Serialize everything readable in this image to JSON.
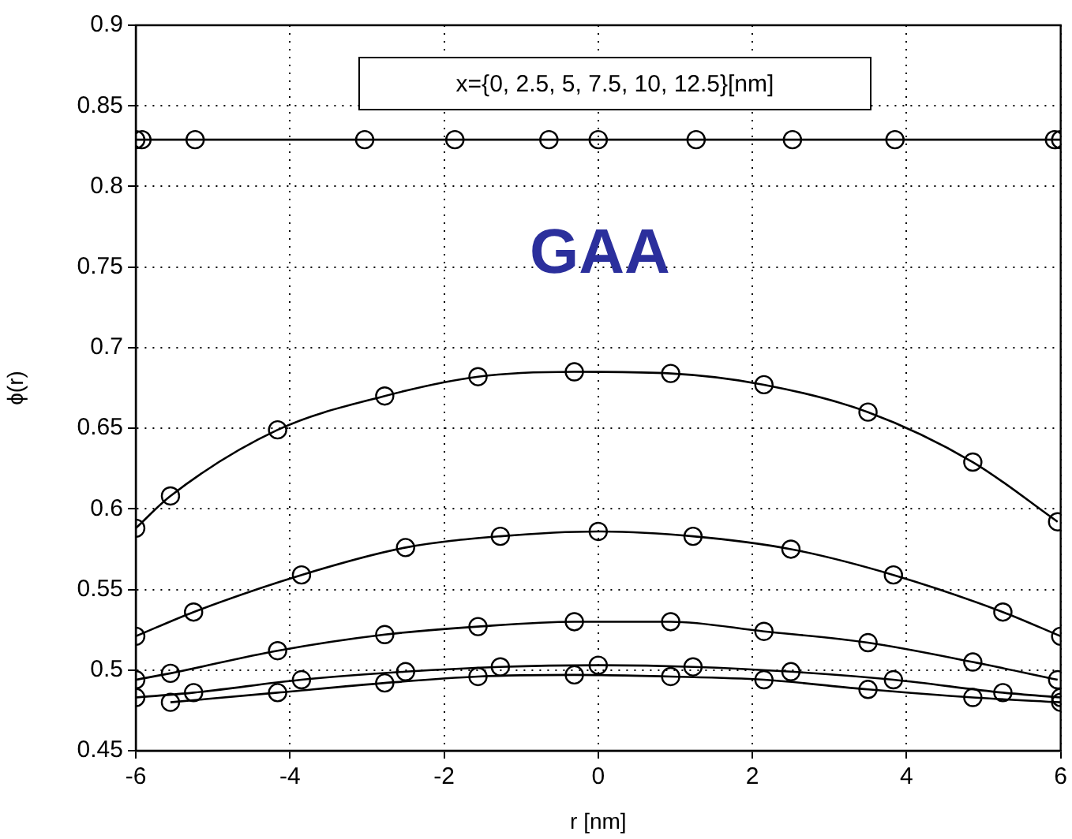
{
  "chart_data": {
    "type": "line",
    "xlabel": "r [nm]",
    "ylabel": "ϕ(r)",
    "annotations": [
      "x={0, 2.5, 5, 7.5, 10, 12.5}[nm]",
      "GAA"
    ],
    "xlim": [
      -6,
      6
    ],
    "xticks": [
      -6,
      -4,
      -2,
      0,
      2,
      4,
      6
    ],
    "ylim": [
      0.45,
      0.9
    ],
    "yticks": [
      0.45,
      0.5,
      0.55,
      0.6,
      0.65,
      0.7,
      0.75,
      0.8,
      0.85,
      0.9
    ],
    "grid": true,
    "legend": false,
    "marker": "circle",
    "line_style": "solid",
    "series": [
      {
        "color": "#000000",
        "x": [
          -6,
          -5.92,
          -5.23,
          -3.03,
          -1.86,
          -0.64,
          0,
          1.27,
          2.52,
          3.85,
          5.92,
          6
        ],
        "values": [
          0.829,
          0.829,
          0.829,
          0.829,
          0.829,
          0.829,
          0.829,
          0.829,
          0.829,
          0.829,
          0.829,
          0.829
        ]
      },
      {
        "color": "#000000",
        "x": [
          -6,
          -5.55,
          -4.16,
          -2.77,
          -1.56,
          -0.31,
          0.94,
          2.15,
          3.5,
          4.86,
          5.96
        ],
        "values": [
          0.588,
          0.608,
          0.649,
          0.67,
          0.682,
          0.685,
          0.684,
          0.677,
          0.66,
          0.629,
          0.592
        ]
      },
      {
        "color": "#000000",
        "x": [
          -6,
          -5.25,
          -3.85,
          -2.5,
          -1.27,
          0,
          1.23,
          2.5,
          3.83,
          5.25,
          6
        ],
        "values": [
          0.521,
          0.536,
          0.559,
          0.576,
          0.583,
          0.586,
          0.583,
          0.575,
          0.559,
          0.536,
          0.521
        ]
      },
      {
        "color": "#000000",
        "x": [
          -6,
          -5.55,
          -4.16,
          -2.77,
          -1.56,
          -0.31,
          0.94,
          2.15,
          3.5,
          4.86,
          5.96
        ],
        "values": [
          0.494,
          0.498,
          0.512,
          0.522,
          0.527,
          0.53,
          0.53,
          0.524,
          0.517,
          0.505,
          0.494
        ]
      },
      {
        "color": "#000000",
        "x": [
          -6,
          -5.25,
          -3.85,
          -2.5,
          -1.27,
          0,
          1.23,
          2.5,
          3.83,
          5.25,
          6
        ],
        "values": [
          0.483,
          0.486,
          0.494,
          0.499,
          0.502,
          0.503,
          0.502,
          0.499,
          0.494,
          0.486,
          0.483
        ]
      },
      {
        "color": "#000000",
        "x": [
          -5.55,
          -4.16,
          -2.77,
          -1.56,
          -0.31,
          0.94,
          2.15,
          3.5,
          4.86,
          6
        ],
        "values": [
          0.48,
          0.486,
          0.492,
          0.496,
          0.497,
          0.496,
          0.494,
          0.488,
          0.483,
          0.48
        ]
      }
    ]
  }
}
